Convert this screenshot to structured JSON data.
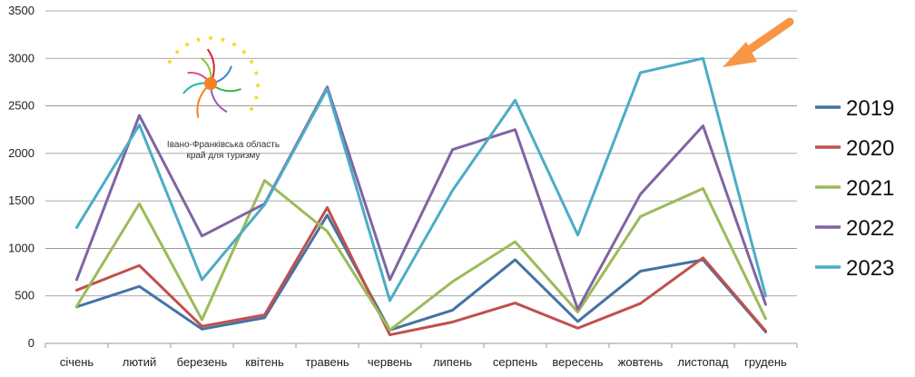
{
  "chart_data": {
    "type": "line",
    "categories": [
      "січень",
      "лютий",
      "березень",
      "квітень",
      "травень",
      "червень",
      "липень",
      "серпень",
      "вересень",
      "жовтень",
      "листопад",
      "грудень"
    ],
    "ylim": [
      0,
      3500
    ],
    "yticks": [
      0,
      500,
      1000,
      1500,
      2000,
      2500,
      3000,
      3500
    ],
    "grid": true,
    "legend_position": "right",
    "series": [
      {
        "name": "2019",
        "color": "#4472a4",
        "values": [
          385,
          600,
          150,
          270,
          1350,
          140,
          350,
          880,
          230,
          760,
          880,
          120
        ]
      },
      {
        "name": "2020",
        "color": "#c0504d",
        "values": [
          560,
          820,
          180,
          300,
          1430,
          90,
          225,
          425,
          160,
          420,
          900,
          130
        ]
      },
      {
        "name": "2021",
        "color": "#9bbb59",
        "values": [
          390,
          1470,
          250,
          1715,
          1180,
          140,
          650,
          1070,
          330,
          1335,
          1630,
          260
        ]
      },
      {
        "name": "2022",
        "color": "#8064a2",
        "values": [
          670,
          2400,
          1130,
          1470,
          2700,
          670,
          2040,
          2250,
          360,
          1570,
          2290,
          410
        ]
      },
      {
        "name": "2023",
        "color": "#4bacc6",
        "values": [
          1220,
          2300,
          670,
          1460,
          2680,
          450,
          1610,
          2560,
          1140,
          2850,
          3000,
          500
        ]
      }
    ]
  },
  "logo": {
    "line1": "Івано-Франківська область",
    "line2": "край для туризму"
  },
  "arrow_color": "#f79646"
}
